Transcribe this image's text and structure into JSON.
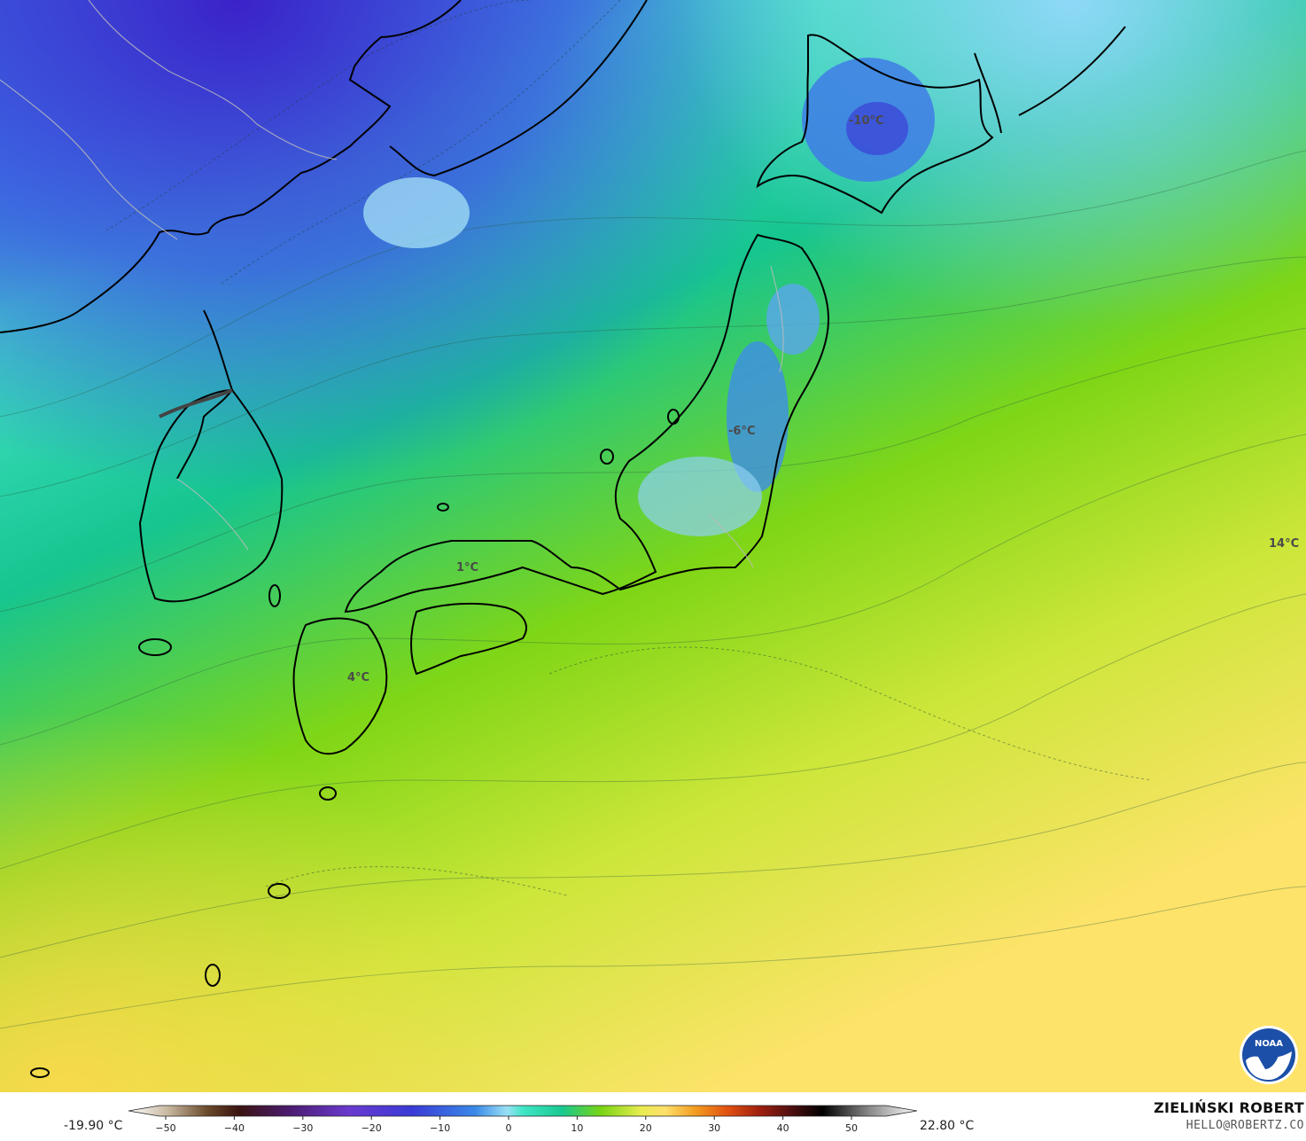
{
  "map": {
    "labels": [
      {
        "id": "hokkaido",
        "text": "-10°C"
      },
      {
        "id": "tohoku",
        "text": "-6°C"
      },
      {
        "id": "kansai",
        "text": "1°C"
      },
      {
        "id": "kyushu",
        "text": "4°C"
      },
      {
        "id": "pacific",
        "text": "14°C"
      }
    ]
  },
  "colorbar": {
    "min_label": "-19.90 °C",
    "max_label": "22.80 °C",
    "ticks": [
      "−50",
      "−40",
      "−30",
      "−20",
      "−10",
      "0",
      "10",
      "20",
      "30",
      "40",
      "50"
    ]
  },
  "author": {
    "name": "ZIELIŃSKI ROBERT",
    "email": "HELLO@ROBERTZ.CO"
  },
  "logo": {
    "text": "NOAA",
    "icon": "noaa-logo-icon"
  },
  "colors": {
    "cold_deep": "#3f35d6",
    "cold": "#3f8fe8",
    "cool": "#a8e4f2",
    "zero": "#40e6c6",
    "mild": "#17c98e",
    "green": "#7ad412",
    "warm": "#d6ea3a",
    "hot": "#fde46a"
  }
}
